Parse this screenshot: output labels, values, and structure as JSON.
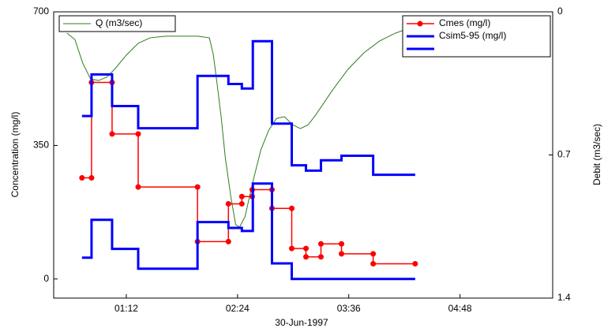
{
  "chart_data": {
    "type": "line",
    "xlabel": "30-Jun-1997",
    "ylabel": "Concentration (mg/l)",
    "y2label": "Debit (m3/sec)",
    "xlim": [
      25,
      348
    ],
    "xticks": [
      {
        "value": 72,
        "label": "01:12"
      },
      {
        "value": 144,
        "label": "02:24"
      },
      {
        "value": 216,
        "label": "03:36"
      },
      {
        "value": 288,
        "label": "04:48"
      }
    ],
    "ylim": [
      -50,
      700
    ],
    "yticks": [
      0,
      350,
      700
    ],
    "y2lim": [
      1.4,
      0
    ],
    "y2ticks": [
      0,
      0.7,
      1.4
    ],
    "series": [
      {
        "name": "Q (m3/sec)",
        "color": "#2e7d1e",
        "axis": "y2",
        "x": [
          33.6,
          38.7,
          43.8,
          48.9,
          54.1,
          59.2,
          64.3,
          72,
          79.7,
          87.4,
          97.6,
          107.9,
          118.1,
          125.8,
          128.4,
          131,
          133.5,
          136.1,
          139.7,
          142.8,
          145.3,
          148.8,
          154,
          159.1,
          164.2,
          169.3,
          174.4,
          179.6,
          184.7,
          189.8,
          194.9,
          205.2,
          215.4,
          225.7,
          235.9,
          246.2,
          256.4,
          271.8,
          287.2,
          307.7,
          328.2,
          341
        ],
        "values": [
          0.104,
          0.135,
          0.251,
          0.328,
          0.336,
          0.32,
          0.282,
          0.212,
          0.154,
          0.127,
          0.119,
          0.119,
          0.119,
          0.127,
          0.212,
          0.366,
          0.521,
          0.714,
          0.906,
          1.041,
          1.053,
          1.003,
          0.829,
          0.675,
          0.579,
          0.521,
          0.513,
          0.552,
          0.571,
          0.552,
          0.501,
          0.386,
          0.282,
          0.201,
          0.143,
          0.104,
          0.077,
          0.054,
          0.039,
          0.031,
          0.027,
          0.027
        ]
      },
      {
        "name": "Cmes (mg/l)",
        "color": "#ff0000",
        "axis": "y",
        "marker": "o",
        "x": [
          43.3,
          49.5,
          49.5,
          62.8,
          62.8,
          79.7,
          79.7,
          118.1,
          118.1,
          138.1,
          138.1,
          146.8,
          146.8,
          153.5,
          153.5,
          166.3,
          166.3,
          179.1,
          179.1,
          188.3,
          188.3,
          198,
          198,
          211.3,
          211.3,
          231.8,
          231.8,
          259
        ],
        "values": [
          265,
          265,
          515,
          515,
          380,
          380,
          241,
          241,
          98,
          98,
          197,
          197,
          216,
          216,
          234,
          234,
          185,
          185,
          80,
          80,
          58,
          58,
          92,
          92,
          66,
          66,
          40,
          40
        ]
      },
      {
        "name": "Csim5-95 (mg/l)",
        "color": "#0000ff",
        "axis": "y",
        "x": [
          43.3,
          49.5,
          49.5,
          62.8,
          62.8,
          79.7,
          79.7,
          118.1,
          118.1,
          138.1,
          138.1,
          146.8,
          146.8,
          153.9,
          153.9,
          166.3,
          166.3,
          179.1,
          179.1,
          188.3,
          188.3,
          198,
          198,
          211.3,
          211.3,
          231.8,
          231.8,
          259
        ],
        "values": [
          427,
          427,
          536,
          536,
          453,
          453,
          395,
          395,
          532,
          532,
          511,
          511,
          499,
          499,
          623,
          623,
          407,
          407,
          298,
          298,
          284,
          284,
          311,
          311,
          323,
          323,
          273,
          273
        ]
      },
      {
        "color": "#0000ff",
        "axis": "y",
        "x": [
          43.3,
          49.5,
          49.5,
          62.8,
          62.8,
          79.7,
          79.7,
          118.1,
          118.1,
          138.1,
          138.1,
          146.8,
          146.8,
          153.9,
          153.9,
          166.3,
          166.3,
          179.1,
          179.1,
          259
        ],
        "values": [
          56,
          56,
          155,
          155,
          79,
          79,
          27,
          27,
          149,
          149,
          134,
          134,
          126,
          126,
          250,
          250,
          41,
          41,
          0,
          0
        ]
      }
    ]
  }
}
